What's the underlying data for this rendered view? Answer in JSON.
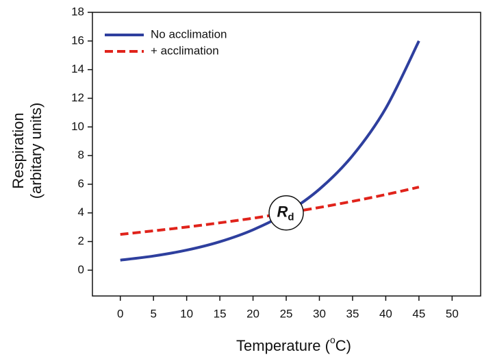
{
  "chart_data": {
    "type": "line",
    "x": [
      0,
      5,
      10,
      15,
      20,
      25,
      30,
      35,
      40,
      45
    ],
    "series": [
      {
        "name": "No acclimation",
        "color": "#2e3f9e",
        "dash": "solid",
        "values": [
          0.7,
          0.99,
          1.4,
          1.99,
          2.82,
          3.99,
          5.65,
          8.0,
          11.3,
          16.0
        ]
      },
      {
        "name": "+ acclimation",
        "color": "#e0231b",
        "dash": "dashed",
        "values": [
          2.5,
          2.75,
          3.01,
          3.31,
          3.63,
          3.99,
          4.38,
          4.81,
          5.28,
          5.8
        ]
      }
    ],
    "xlim": [
      -4.2,
      54.4
    ],
    "ylim": [
      -1.8,
      18
    ],
    "xticks": [
      0,
      5,
      10,
      15,
      20,
      25,
      30,
      35,
      40,
      45,
      50
    ],
    "yticks": [
      0,
      2,
      4,
      6,
      8,
      10,
      12,
      14,
      16,
      18
    ],
    "xlabel": {
      "prefix": "Temperature (",
      "superscript": "o",
      "suffix": "C)"
    },
    "ylabel": [
      "Respiration",
      "(arbitary units)"
    ],
    "annotation": {
      "x": 25,
      "y": 4,
      "text": "R",
      "subscript": "d"
    },
    "legend": "upper left"
  }
}
